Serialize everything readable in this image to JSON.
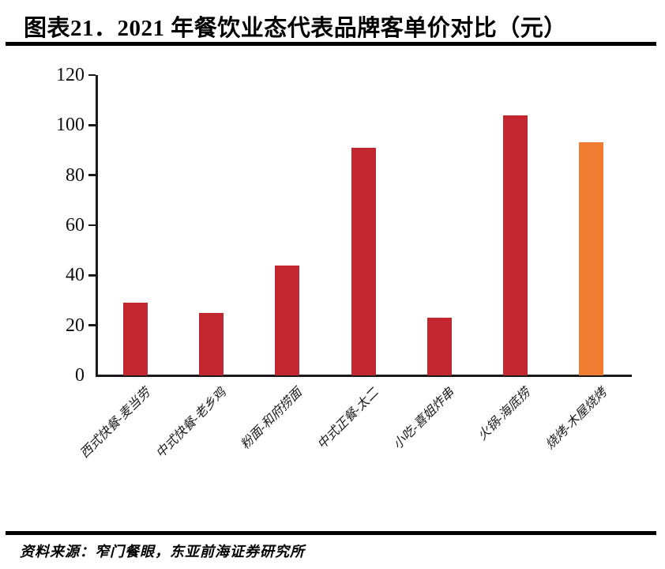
{
  "header": {
    "title": "图表21．2021 年餐饮业态代表品牌客单价对比（元）"
  },
  "footer": {
    "source": "资料来源：窄门餐眼，东亚前海证券研究所"
  },
  "colors": {
    "default_bar": "#C2262E",
    "highlight_bar": "#EE7D31",
    "axis": "#1a1a1a",
    "rule": "#000000"
  },
  "chart_data": {
    "type": "bar",
    "title": "图表21．2021 年餐饮业态代表品牌客单价对比（元）",
    "categories": [
      "西式快餐-麦当劳",
      "中式快餐-老乡鸡",
      "粉面-和府捞面",
      "中式正餐-太二",
      "小吃-喜姐炸串",
      "火锅-海底捞",
      "烧烤-木屋烧烤"
    ],
    "values": [
      29,
      25,
      44,
      91,
      23,
      104,
      93
    ],
    "bar_colors": [
      "#C2262E",
      "#C2262E",
      "#C2262E",
      "#C2262E",
      "#C2262E",
      "#C2262E",
      "#EE7D31"
    ],
    "xlabel": "",
    "ylabel": "",
    "unit": "元",
    "ylim": [
      0,
      120
    ],
    "yticks": [
      0,
      20,
      40,
      60,
      80,
      100,
      120
    ],
    "grid": false,
    "legend_position": "none",
    "x_tick_rotation_deg": 45
  }
}
